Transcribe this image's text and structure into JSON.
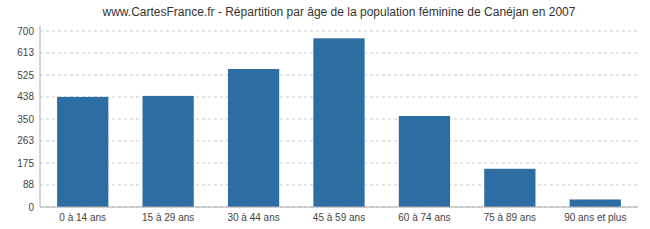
{
  "chart_data": {
    "type": "bar",
    "title": "www.CartesFrance.fr - Répartition par âge de la population féminine de Canéjan en 2007",
    "categories": [
      "0 à 14 ans",
      "15 à 29 ans",
      "30 à 44 ans",
      "45 à 59 ans",
      "60 à 74 ans",
      "75 à 89 ans",
      "90 ans et plus"
    ],
    "values": [
      438,
      442,
      549,
      671,
      362,
      152,
      30
    ],
    "color": "#2e6da4",
    "ylim": [
      0,
      720
    ],
    "yticks": [
      0,
      88,
      175,
      263,
      350,
      438,
      525,
      613,
      700
    ],
    "grid": true
  }
}
